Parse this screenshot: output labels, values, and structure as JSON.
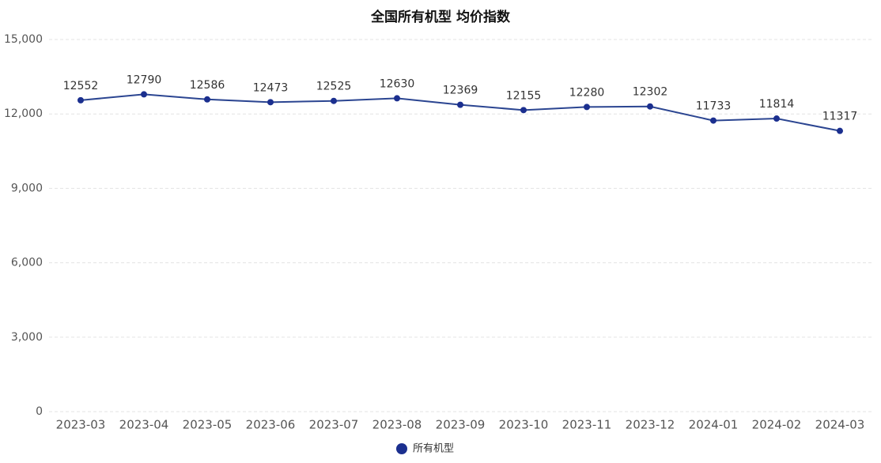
{
  "chart_data": {
    "type": "line",
    "title": "全国所有机型 均价指数",
    "x": [
      "2023-03",
      "2023-04",
      "2023-05",
      "2023-06",
      "2023-07",
      "2023-08",
      "2023-09",
      "2023-10",
      "2023-11",
      "2023-12",
      "2024-01",
      "2024-02",
      "2024-03"
    ],
    "series": [
      {
        "name": "所有机型",
        "color": "#2b4591",
        "marker_color": "#1b2f8f",
        "values": [
          12552,
          12790,
          12586,
          12473,
          12525,
          12630,
          12369,
          12155,
          12280,
          12302,
          11733,
          11814,
          11317
        ]
      }
    ],
    "ylim": [
      0,
      15000
    ],
    "yticks": [
      0,
      {
        "value": 3000,
        "label": "3,000"
      },
      {
        "value": 6000,
        "label": "6,000"
      },
      {
        "value": 9000,
        "label": "9,000"
      },
      {
        "value": 12000,
        "label": "12,000"
      },
      {
        "value": 15000,
        "label": "15,000"
      }
    ],
    "grid": true,
    "legend": "bottom"
  }
}
